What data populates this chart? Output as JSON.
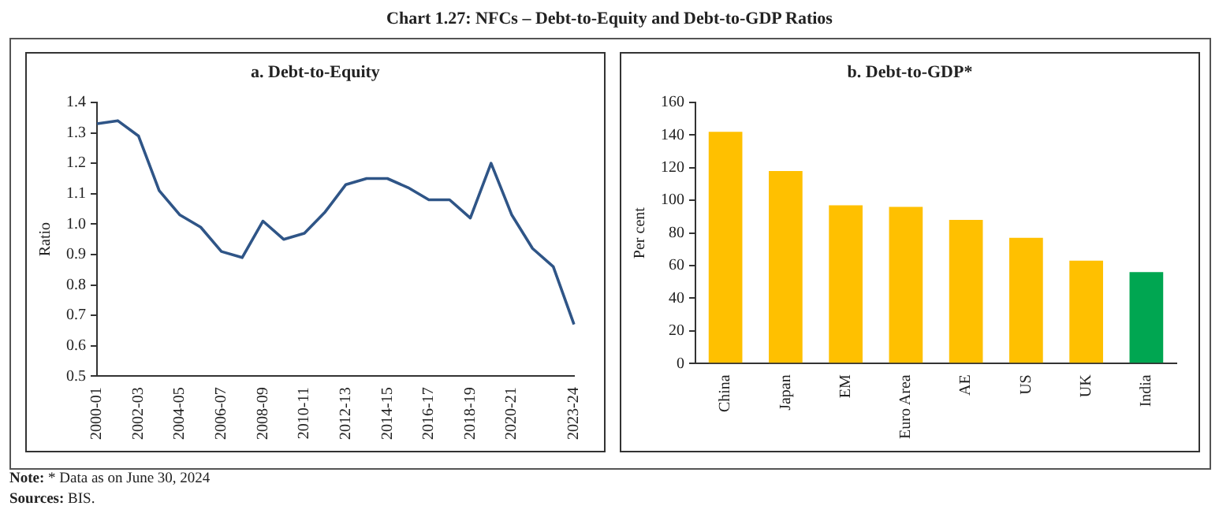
{
  "chart_data": [
    {
      "type": "line",
      "title": "a. Debt-to-Equity",
      "ylabel": "Ratio",
      "annotations": [
        "Chart 1.27: NFCs – Debt-to-Equity and Debt-to-GDP Ratios"
      ],
      "categories": [
        "2000-01",
        null,
        "2002-03",
        null,
        "2004-05",
        null,
        "2006-07",
        null,
        "2008-09",
        null,
        "2010-11",
        null,
        "2012-13",
        null,
        "2014-15",
        null,
        "2016-17",
        null,
        "2018-19",
        null,
        "2020-21",
        null,
        null,
        "2023-24"
      ],
      "series": [
        {
          "color": "#2f5587",
          "values": [
            1.33,
            1.34,
            1.29,
            1.11,
            1.03,
            0.99,
            0.91,
            0.89,
            1.01,
            0.95,
            0.97,
            1.04,
            1.13,
            1.15,
            1.15,
            1.12,
            1.08,
            1.08,
            1.02,
            1.2,
            1.03,
            0.92,
            0.86,
            0.67
          ]
        }
      ],
      "ylim": [
        0.5,
        1.4
      ],
      "yticks": [
        0.5,
        0.6,
        0.7,
        0.8,
        0.9,
        {
          "value": 1,
          "label": "1.0"
        },
        1.1,
        1.2,
        1.3,
        1.4
      ],
      "grid": false,
      "legend": false,
      "marker": "none",
      "line_style": "solid"
    },
    {
      "type": "bar",
      "title": "b. Debt-to-GDP*",
      "ylabel": "Per cent",
      "annotations": [
        "Note: * Data as on June 30, 2024",
        "Sources: BIS."
      ],
      "categories": [
        "China",
        "Japan",
        "EM",
        "Euro Area",
        "AE",
        "US",
        "UK",
        "India"
      ],
      "values": [
        142,
        118,
        97,
        96,
        88,
        77,
        63,
        56
      ],
      "colors": [
        "#ffc000",
        "#ffc000",
        "#ffc000",
        "#ffc000",
        "#ffc000",
        "#ffc000",
        "#ffc000",
        "#00a651"
      ],
      "ylim": [
        0,
        160
      ],
      "yticks": [
        0,
        20,
        40,
        60,
        80,
        100,
        120,
        140,
        160
      ],
      "grid": false,
      "legend": false
    }
  ]
}
